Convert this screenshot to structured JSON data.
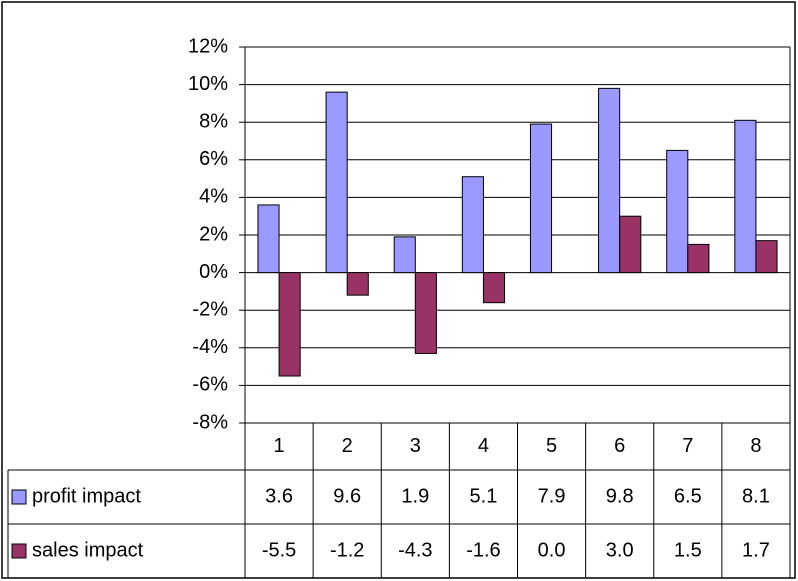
{
  "chart_data": {
    "type": "bar",
    "categories": [
      "1",
      "2",
      "3",
      "4",
      "5",
      "6",
      "7",
      "8"
    ],
    "series": [
      {
        "name": "profit impact",
        "color": "#9999ff",
        "values": [
          3.6,
          9.6,
          1.9,
          5.1,
          7.9,
          9.8,
          6.5,
          8.1
        ]
      },
      {
        "name": "sales impact",
        "color": "#993366",
        "values": [
          -5.5,
          -1.2,
          -4.3,
          -1.6,
          0,
          3,
          1.5,
          1.7
        ],
        "value_labels": [
          "-5.5",
          "-1.2",
          "-4.3",
          "-1.6",
          "0.0",
          "3.0",
          "1.5",
          "1.7"
        ]
      }
    ],
    "ylim": [
      -8,
      12
    ],
    "yticks": [
      {
        "value": -8,
        "label": "-8%"
      },
      {
        "value": -6,
        "label": "-6%"
      },
      {
        "value": -4,
        "label": "-4%"
      },
      {
        "value": -2,
        "label": "-2%"
      },
      {
        "value": 0,
        "label": "0%"
      },
      {
        "value": 2,
        "label": "2%"
      },
      {
        "value": 4,
        "label": "4%"
      },
      {
        "value": 6,
        "label": "6%"
      },
      {
        "value": 8,
        "label": "8%"
      },
      {
        "value": 10,
        "label": "10%"
      },
      {
        "value": 12,
        "label": "12%"
      }
    ],
    "grid": true,
    "data_table": true
  }
}
